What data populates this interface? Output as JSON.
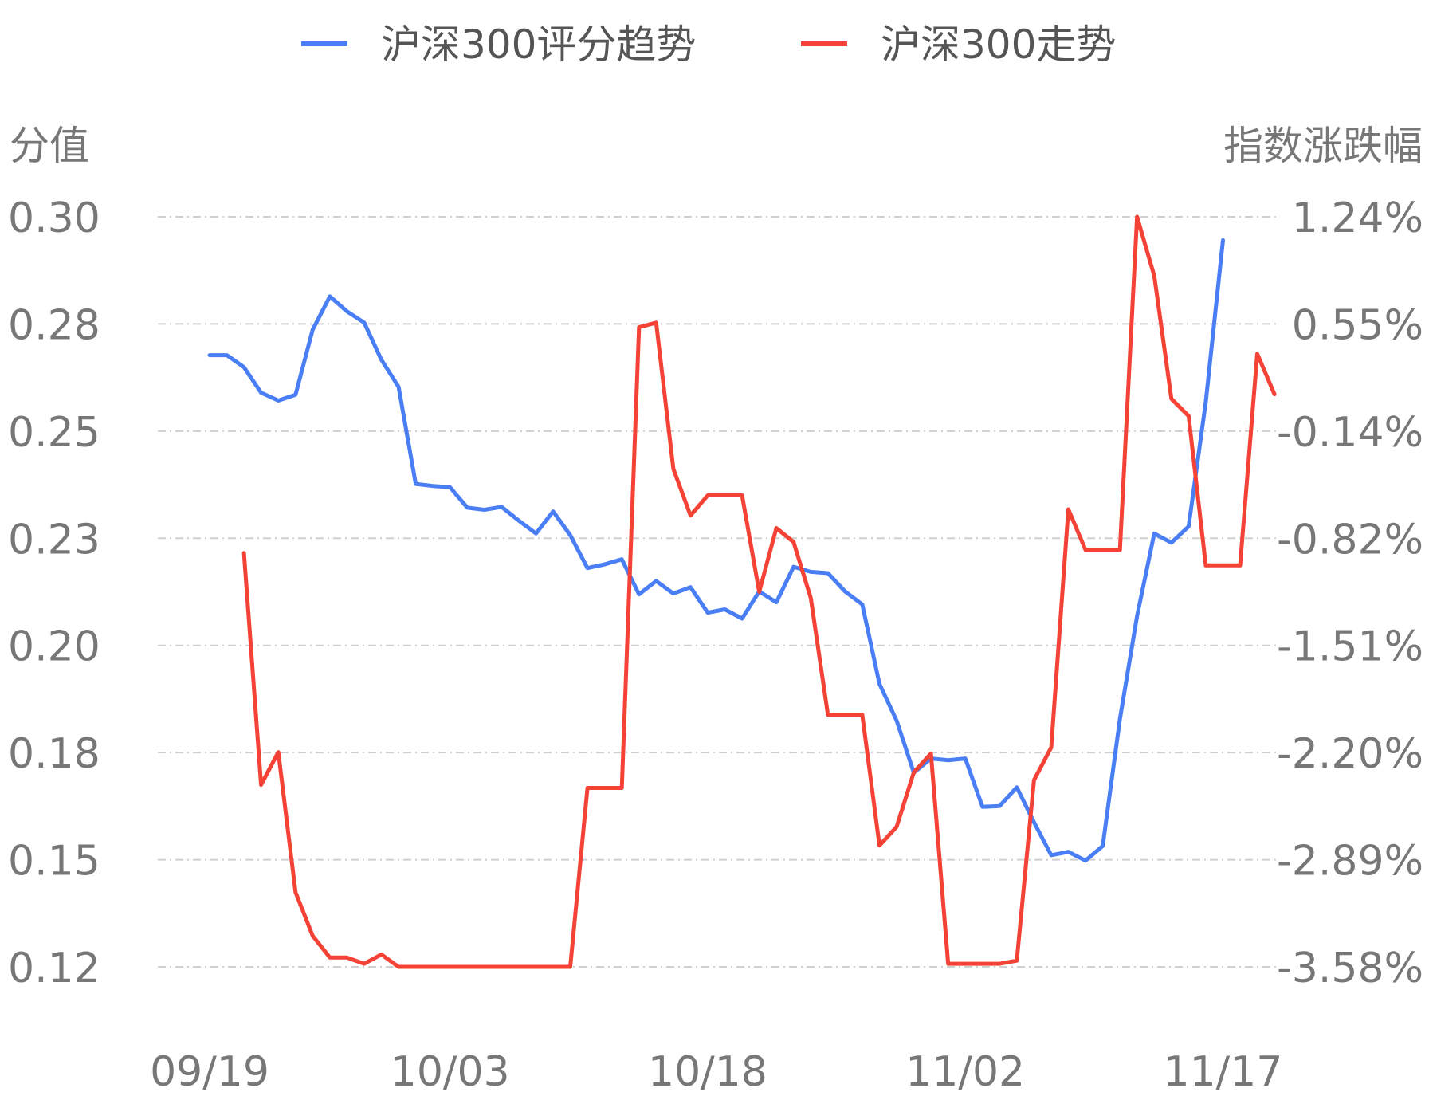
{
  "chart_data": {
    "type": "line",
    "legend_position": "top-center",
    "grid": true,
    "left_axis": {
      "title": "分值",
      "tick_labels": [
        "0.30",
        "0.28",
        "0.25",
        "0.23",
        "0.20",
        "0.18",
        "0.15",
        "0.12"
      ],
      "ylim": [
        0.12,
        0.3
      ]
    },
    "right_axis": {
      "title": "指数涨跌幅",
      "tick_labels": [
        "1.24%",
        "0.55%",
        "-0.14%",
        "-0.82%",
        "-1.51%",
        "-2.20%",
        "-2.89%",
        "-3.58%"
      ],
      "ylim": [
        -3.58,
        1.24
      ]
    },
    "x_tick_labels": [
      "09/19",
      "10/03",
      "10/18",
      "11/02",
      "11/17"
    ],
    "x_count": 62,
    "x_tick_indices": [
      0,
      14,
      29,
      44,
      59
    ],
    "series": [
      {
        "name": "沪深300评分趋势",
        "axis": "left",
        "color": "#4a7ef5",
        "x_start": 0,
        "values": [
          0.2668,
          0.2668,
          0.2639,
          0.2578,
          0.2559,
          0.2573,
          0.2729,
          0.2809,
          0.2773,
          0.2746,
          0.2657,
          0.2592,
          0.2359,
          0.2354,
          0.2351,
          0.2302,
          0.2297,
          0.2304,
          0.2271,
          0.224,
          0.2293,
          0.2236,
          0.2157,
          0.2166,
          0.2178,
          0.2094,
          0.2126,
          0.2096,
          0.2111,
          0.205,
          0.2058,
          0.2036,
          0.2101,
          0.2075,
          0.216,
          0.2148,
          0.2145,
          0.2101,
          0.207,
          0.1879,
          0.1791,
          0.1666,
          0.17,
          0.1696,
          0.17,
          0.1584,
          0.1586,
          0.1631,
          0.1547,
          0.1468,
          0.1476,
          0.1455,
          0.149,
          0.1795,
          0.2042,
          0.224,
          0.2218,
          0.2257,
          0.2555,
          0.2944
        ]
      },
      {
        "name": "沪深300走势",
        "axis": "right",
        "color": "#f44336",
        "x_start": 2,
        "values": [
          -0.92,
          -2.41,
          -2.2,
          -3.1,
          -3.38,
          -3.52,
          -3.52,
          -3.56,
          -3.5,
          -3.58,
          -3.58,
          -3.58,
          -3.58,
          -3.58,
          -3.58,
          -3.58,
          -3.58,
          -3.58,
          -3.58,
          -3.58,
          -2.43,
          -2.43,
          -2.43,
          0.53,
          0.56,
          -0.38,
          -0.68,
          -0.55,
          -0.55,
          -0.55,
          -1.17,
          -0.76,
          -0.85,
          -1.21,
          -1.96,
          -1.96,
          -1.96,
          -2.8,
          -2.68,
          -2.33,
          -2.21,
          -3.56,
          -3.56,
          -3.56,
          -3.56,
          -3.54,
          -2.38,
          -2.17,
          -0.64,
          -0.9,
          -0.9,
          -0.9,
          1.24,
          0.86,
          0.07,
          -0.04,
          -1.0,
          -1.0,
          -1.0,
          0.36,
          0.1
        ]
      }
    ]
  }
}
